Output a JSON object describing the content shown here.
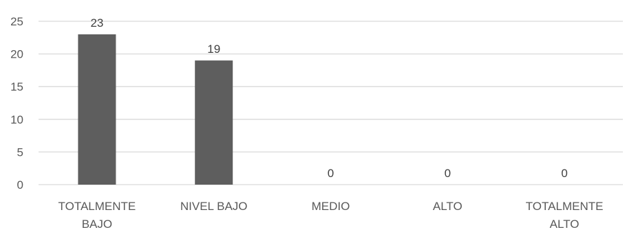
{
  "chart_data": {
    "type": "bar",
    "title": "",
    "xlabel": "",
    "ylabel": "",
    "categories": [
      "TOTALMENTE BAJO",
      "NIVEL BAJO",
      "MEDIO",
      "ALTO",
      "TOTALMENTE ALTO"
    ],
    "category_label_lines": [
      [
        "TOTALMENTE",
        "BAJO"
      ],
      [
        "NIVEL BAJO"
      ],
      [
        "MEDIO"
      ],
      [
        "ALTO"
      ],
      [
        "TOTALMENTE",
        "ALTO"
      ]
    ],
    "values": [
      23,
      19,
      0,
      0,
      0
    ],
    "data_labels": [
      "23",
      "19",
      "0",
      "0",
      "0"
    ],
    "ylim": [
      0,
      25
    ],
    "yticks": [
      0,
      5,
      10,
      15,
      20,
      25
    ],
    "ytick_labels": [
      "0",
      "5",
      "10",
      "15",
      "20",
      "25"
    ],
    "grid": true,
    "legend": "none",
    "colors": {
      "bar": "#5e5e5e",
      "grid": "#d9d9d9",
      "axis": "#d9d9d9"
    }
  }
}
